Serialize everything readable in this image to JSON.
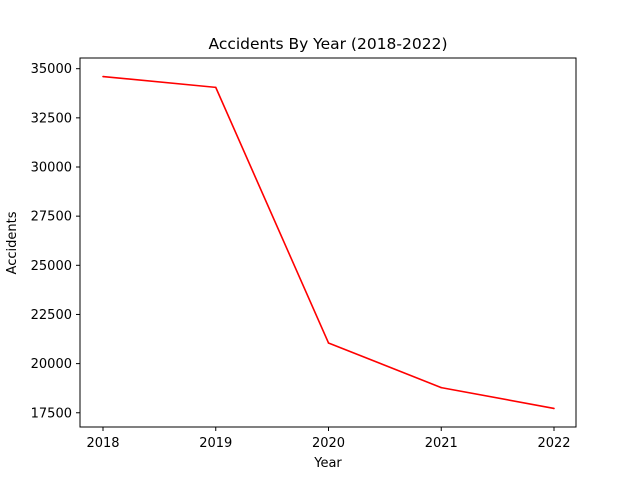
{
  "chart_data": {
    "type": "line",
    "title": "Accidents By Year (2018-2022)",
    "xlabel": "Year",
    "ylabel": "Accidents",
    "x": [
      "2018",
      "2019",
      "2020",
      "2021",
      "2022"
    ],
    "series": [
      {
        "values": [
          34600,
          34050,
          21050,
          18780,
          17720
        ],
        "color": "#ff0000"
      }
    ],
    "yticks": [
      17500,
      20000,
      22500,
      25000,
      27500,
      30000,
      32500,
      35000
    ],
    "ylim": [
      16776,
      35544
    ],
    "grid": false,
    "legend": "none"
  }
}
